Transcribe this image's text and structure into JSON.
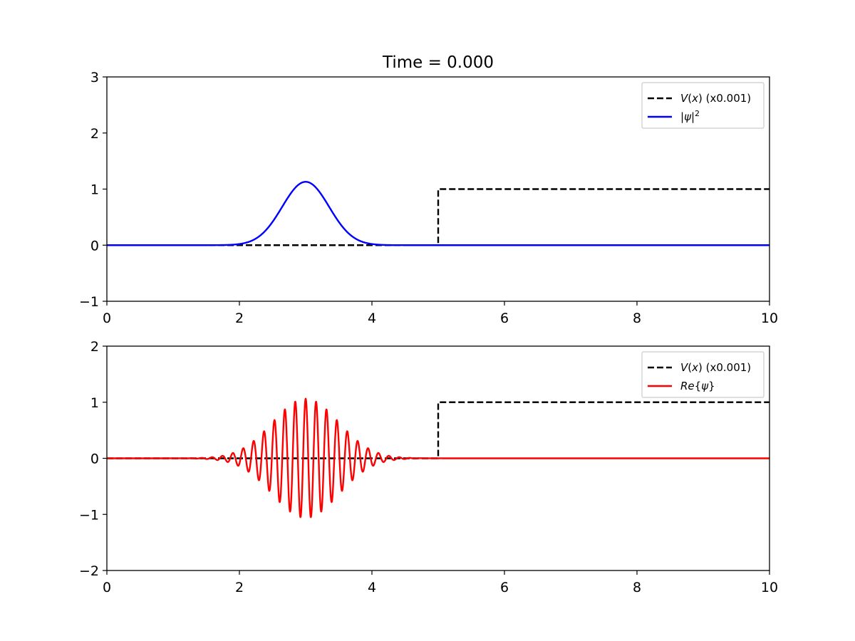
{
  "figure_title": "Time = 0.000",
  "chart_data": [
    {
      "type": "line",
      "panel": "top",
      "title": "Time = 0.000",
      "xlim": [
        0,
        10
      ],
      "ylim": [
        -1,
        3
      ],
      "xticks": [
        0,
        2,
        4,
        6,
        8,
        10
      ],
      "xtick_labels": [
        "0",
        "2",
        "4",
        "6",
        "8",
        "10"
      ],
      "yticks": [
        -1,
        0,
        1,
        2,
        3
      ],
      "ytick_labels": [
        "−1",
        "0",
        "1",
        "2",
        "3"
      ],
      "grid": false,
      "legend_position": "top-right",
      "series": [
        {
          "name": "V(x) (x0.001)",
          "legend_parts": [
            [
              "V",
              "italic"
            ],
            [
              "(",
              "normal"
            ],
            [
              "x",
              "italic"
            ],
            [
              ") (x0.001)",
              "normal"
            ]
          ],
          "color": "#000000",
          "style": "dashed",
          "x": [
            0,
            5,
            5,
            10
          ],
          "y": [
            0,
            0,
            1,
            1
          ]
        },
        {
          "name": "|ψ|²",
          "legend_parts": [
            [
              "|",
              "normal"
            ],
            [
              "ψ",
              "italic"
            ],
            [
              "|",
              "normal"
            ],
            [
              "2",
              "sup"
            ]
          ],
          "color": "#0000ff",
          "style": "solid",
          "function": "gaussian_density",
          "center": 3.0,
          "width": 0.5,
          "peak": 1.13
        }
      ]
    },
    {
      "type": "line",
      "panel": "bottom",
      "xlim": [
        0,
        10
      ],
      "ylim": [
        -2,
        2
      ],
      "xticks": [
        0,
        2,
        4,
        6,
        8,
        10
      ],
      "xtick_labels": [
        "0",
        "2",
        "4",
        "6",
        "8",
        "10"
      ],
      "yticks": [
        -2,
        -1,
        0,
        1,
        2
      ],
      "ytick_labels": [
        "−2",
        "−1",
        "0",
        "1",
        "2"
      ],
      "grid": false,
      "legend_position": "top-right",
      "series": [
        {
          "name": "V(x) (x0.001)",
          "legend_parts": [
            [
              "V",
              "italic"
            ],
            [
              "(",
              "normal"
            ],
            [
              "x",
              "italic"
            ],
            [
              ") (x0.001)",
              "normal"
            ]
          ],
          "color": "#000000",
          "style": "dashed",
          "x": [
            0,
            5,
            5,
            10
          ],
          "y": [
            0,
            0,
            1,
            1
          ]
        },
        {
          "name": "Re{ψ}",
          "legend_parts": [
            [
              "Re",
              "italic"
            ],
            [
              "{",
              "normal"
            ],
            [
              "ψ",
              "italic"
            ],
            [
              "}",
              "normal"
            ]
          ],
          "color": "#ff0000",
          "style": "solid",
          "function": "wavepacket_real",
          "center": 3.0,
          "width": 0.5,
          "amplitude": 1.063,
          "wavenumber": 40
        }
      ]
    }
  ]
}
